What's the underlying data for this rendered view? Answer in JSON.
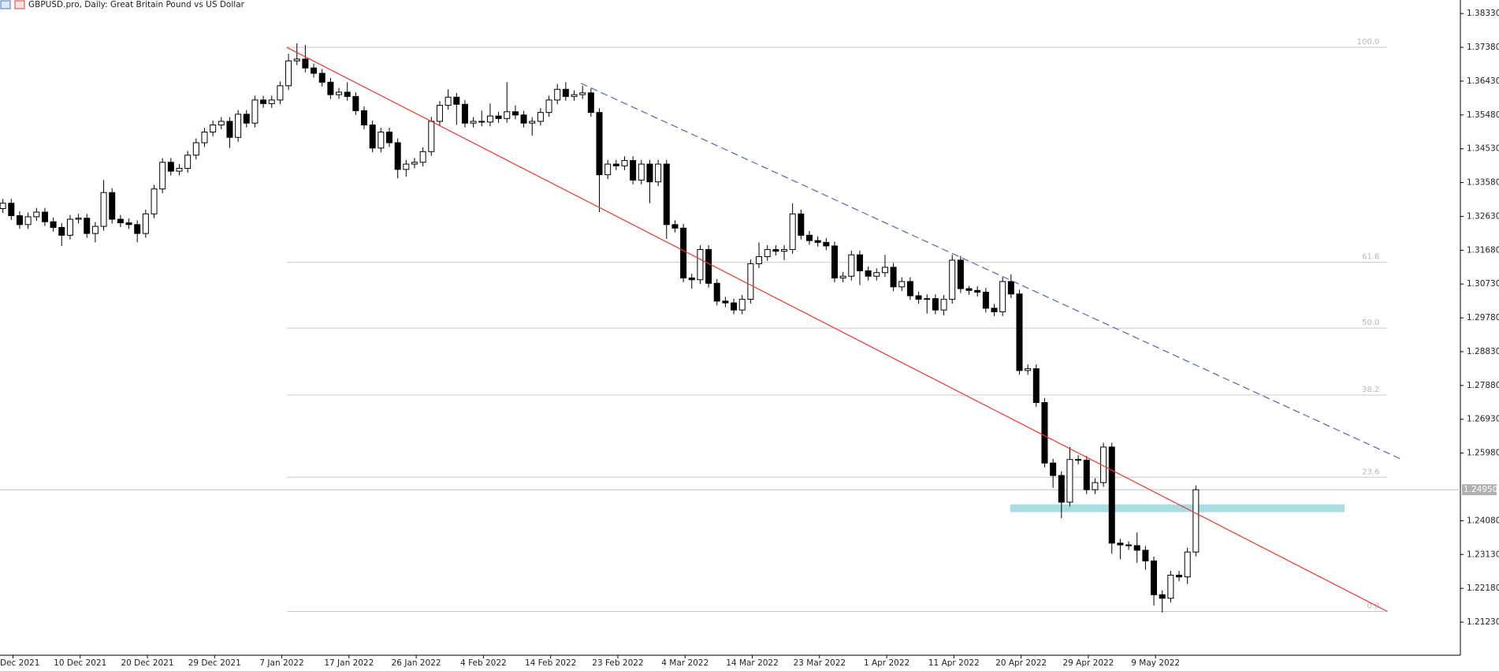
{
  "chart_data": {
    "type": "candlestick",
    "title": "GBPUSD.pro, Daily:  Great Britain Pound vs US Dollar",
    "ylim": [
      1.203,
      1.3871
    ],
    "yticks": [
      {
        "value": 1.3833,
        "label": "1.38330"
      },
      {
        "value": 1.3738,
        "label": "1.37380"
      },
      {
        "value": 1.3643,
        "label": "1.36430"
      },
      {
        "value": 1.3548,
        "label": "1.35480"
      },
      {
        "value": 1.3453,
        "label": "1.34530"
      },
      {
        "value": 1.3358,
        "label": "1.33580"
      },
      {
        "value": 1.3263,
        "label": "1.32630"
      },
      {
        "value": 1.3168,
        "label": "1.31680"
      },
      {
        "value": 1.3073,
        "label": "1.30730"
      },
      {
        "value": 1.2978,
        "label": "1.29780"
      },
      {
        "value": 1.2883,
        "label": "1.28830"
      },
      {
        "value": 1.2788,
        "label": "1.27880"
      },
      {
        "value": 1.2693,
        "label": "1.26930"
      },
      {
        "value": 1.2598,
        "label": "1.25980"
      },
      {
        "value": 1.2408,
        "label": "1.24080"
      },
      {
        "value": 1.2313,
        "label": "1.23130"
      },
      {
        "value": 1.2218,
        "label": "1.22180"
      },
      {
        "value": 1.2123,
        "label": "1.21230"
      }
    ],
    "x_labels": [
      "Dec 2021",
      "10 Dec 2021",
      "20 Dec 2021",
      "29 Dec 2021",
      "7 Jan 2022",
      "17 Jan 2022",
      "26 Jan 2022",
      "4 Feb 2022",
      "14 Feb 2022",
      "23 Feb 2022",
      "4 Mar 2022",
      "14 Mar 2022",
      "23 Mar 2022",
      "1 Apr 2022",
      "11 Apr 2022",
      "20 Apr 2022",
      "29 Apr 2022",
      "9 May 2022"
    ],
    "up_color": "#ffffff",
    "down_color": "#000000",
    "open": [
      1.3285,
      1.33,
      1.3265,
      1.324,
      1.3262,
      1.3275,
      1.3248,
      1.3232,
      1.321,
      1.3255,
      1.3258,
      1.3215,
      1.3235,
      1.333,
      1.3255,
      1.3245,
      1.324,
      1.3215,
      1.327,
      1.334,
      1.3415,
      1.339,
      1.3398,
      1.3435,
      1.347,
      1.35,
      1.352,
      1.353,
      1.3485,
      1.355,
      1.3525,
      1.359,
      1.358,
      1.359,
      1.363,
      1.37,
      1.3705,
      1.368,
      1.3665,
      1.364,
      1.3605,
      1.3612,
      1.36,
      1.356,
      1.352,
      1.3455,
      1.35,
      1.347,
      1.3395,
      1.341,
      1.3415,
      1.3445,
      1.353,
      1.3575,
      1.3598,
      1.3578,
      1.3525,
      1.353,
      1.3528,
      1.3545,
      1.3538,
      1.3557,
      1.3548,
      1.3525,
      1.353,
      1.3555,
      1.359,
      1.362,
      1.36,
      1.3605,
      1.361,
      1.3555,
      1.338,
      1.341,
      1.3405,
      1.342,
      1.3365,
      1.341,
      1.336,
      1.341,
      1.324,
      1.323,
      1.309,
      1.3085,
      1.317,
      1.3075,
      1.3025,
      1.302,
      1.3,
      1.303,
      1.313,
      1.315,
      1.317,
      1.3165,
      1.317,
      1.327,
      1.321,
      1.3195,
      1.319,
      1.318,
      1.309,
      1.3095,
      1.3155,
      1.311,
      1.3095,
      1.3105,
      1.312,
      1.3065,
      1.308,
      1.304,
      1.303,
      1.3032,
      1.3,
      1.303,
      1.314,
      1.306,
      1.3055,
      1.305,
      1.3005,
      1.2995,
      1.308,
      1.3045,
      1.283,
      1.2835,
      1.274,
      1.257,
      1.2535,
      1.246,
      1.258,
      1.2578,
      1.2495,
      1.2515,
      1.2615,
      1.2345,
      1.234,
      1.2338,
      1.2325,
      1.2295,
      1.22,
      1.219,
      1.2255,
      1.225,
      1.232
    ],
    "high": [
      1.3312,
      1.3312,
      1.3277,
      1.3274,
      1.3287,
      1.3287,
      1.326,
      1.3244,
      1.3267,
      1.327,
      1.327,
      1.3247,
      1.3365,
      1.3342,
      1.3267,
      1.3257,
      1.3252,
      1.3282,
      1.3352,
      1.3427,
      1.3427,
      1.341,
      1.3447,
      1.3482,
      1.3512,
      1.3532,
      1.3542,
      1.3542,
      1.3562,
      1.3562,
      1.3602,
      1.3602,
      1.3602,
      1.3642,
      1.372,
      1.3749,
      1.3745,
      1.3692,
      1.3677,
      1.3652,
      1.3624,
      1.364,
      1.3612,
      1.3572,
      1.3532,
      1.3512,
      1.3512,
      1.3482,
      1.3422,
      1.3427,
      1.3457,
      1.3542,
      1.3587,
      1.362,
      1.361,
      1.359,
      1.3542,
      1.356,
      1.358,
      1.3557,
      1.364,
      1.3575,
      1.356,
      1.3542,
      1.3567,
      1.3602,
      1.3635,
      1.364,
      1.3617,
      1.363,
      1.3622,
      1.3567,
      1.3422,
      1.3422,
      1.3432,
      1.3432,
      1.3422,
      1.3422,
      1.3422,
      1.3422,
      1.3252,
      1.3242,
      1.3102,
      1.3182,
      1.3182,
      1.3087,
      1.3037,
      1.3032,
      1.3042,
      1.3142,
      1.319,
      1.3182,
      1.3182,
      1.3182,
      1.33,
      1.3282,
      1.3222,
      1.3207,
      1.3202,
      1.3192,
      1.3107,
      1.3167,
      1.3167,
      1.3122,
      1.3117,
      1.3155,
      1.3132,
      1.3092,
      1.3092,
      1.3052,
      1.3044,
      1.3044,
      1.3042,
      1.3155,
      1.3152,
      1.3067,
      1.3067,
      1.3062,
      1.3017,
      1.3092,
      1.31,
      1.3057,
      1.2847,
      1.2847,
      1.2752,
      1.2582,
      1.2547,
      1.2615,
      1.2592,
      1.259,
      1.2527,
      1.2627,
      1.2627,
      1.2357,
      1.235,
      1.2375,
      1.2337,
      1.2307,
      1.2212,
      1.2267,
      1.2267,
      1.2332,
      1.2507
    ],
    "low": [
      1.3273,
      1.3253,
      1.3228,
      1.3228,
      1.325,
      1.3236,
      1.322,
      1.318,
      1.3198,
      1.3243,
      1.3203,
      1.319,
      1.3223,
      1.3243,
      1.3233,
      1.3228,
      1.319,
      1.3203,
      1.3258,
      1.3328,
      1.3378,
      1.3378,
      1.3386,
      1.3423,
      1.3458,
      1.3488,
      1.3508,
      1.3455,
      1.3473,
      1.3513,
      1.3513,
      1.3568,
      1.3568,
      1.3578,
      1.3618,
      1.3688,
      1.3668,
      1.3653,
      1.3628,
      1.3593,
      1.3593,
      1.3588,
      1.3548,
      1.3508,
      1.3443,
      1.3443,
      1.3458,
      1.337,
      1.3375,
      1.3398,
      1.3403,
      1.3433,
      1.3518,
      1.3563,
      1.352,
      1.3513,
      1.3513,
      1.3516,
      1.3516,
      1.3526,
      1.3526,
      1.3536,
      1.3513,
      1.349,
      1.3518,
      1.3543,
      1.3578,
      1.3588,
      1.3588,
      1.3593,
      1.3543,
      1.3275,
      1.3368,
      1.3393,
      1.3393,
      1.3353,
      1.3353,
      1.33,
      1.3348,
      1.32,
      1.3218,
      1.3078,
      1.306,
      1.3073,
      1.3063,
      1.3013,
      1.3008,
      1.2988,
      1.2988,
      1.3018,
      1.3118,
      1.3138,
      1.3153,
      1.314,
      1.3158,
      1.3198,
      1.3183,
      1.3178,
      1.3168,
      1.3078,
      1.3078,
      1.3083,
      1.307,
      1.3083,
      1.3083,
      1.3093,
      1.3053,
      1.3053,
      1.3028,
      1.3018,
      1.299,
      1.2988,
      1.2985,
      1.3018,
      1.3048,
      1.3043,
      1.3038,
      1.2993,
      1.2983,
      1.2983,
      1.3033,
      1.2818,
      1.2818,
      1.2728,
      1.2558,
      1.25,
      1.2415,
      1.2448,
      1.2566,
      1.2483,
      1.2483,
      1.2503,
      1.2315,
      1.23,
      1.2326,
      1.229,
      1.227,
      1.217,
      1.215,
      1.2178,
      1.2238,
      1.223,
      1.2308
    ],
    "close": [
      1.33,
      1.3265,
      1.324,
      1.3262,
      1.3275,
      1.3248,
      1.3232,
      1.321,
      1.3255,
      1.3258,
      1.3215,
      1.3235,
      1.333,
      1.3255,
      1.3245,
      1.324,
      1.3215,
      1.327,
      1.334,
      1.3415,
      1.339,
      1.3398,
      1.3435,
      1.347,
      1.35,
      1.352,
      1.353,
      1.3485,
      1.355,
      1.3525,
      1.359,
      1.358,
      1.359,
      1.363,
      1.37,
      1.3705,
      1.368,
      1.3665,
      1.364,
      1.3605,
      1.3612,
      1.36,
      1.356,
      1.352,
      1.3455,
      1.35,
      1.347,
      1.3395,
      1.341,
      1.3415,
      1.3445,
      1.353,
      1.3575,
      1.3598,
      1.3578,
      1.3525,
      1.353,
      1.3528,
      1.3545,
      1.3538,
      1.3557,
      1.3548,
      1.3525,
      1.353,
      1.3555,
      1.359,
      1.362,
      1.36,
      1.3605,
      1.361,
      1.3555,
      1.338,
      1.341,
      1.3405,
      1.342,
      1.3365,
      1.341,
      1.336,
      1.341,
      1.324,
      1.323,
      1.309,
      1.3085,
      1.317,
      1.3075,
      1.3025,
      1.302,
      1.3,
      1.303,
      1.313,
      1.315,
      1.317,
      1.3165,
      1.317,
      1.327,
      1.321,
      1.3195,
      1.319,
      1.318,
      1.309,
      1.3095,
      1.3155,
      1.311,
      1.3095,
      1.3105,
      1.312,
      1.3065,
      1.308,
      1.304,
      1.303,
      1.3032,
      1.3,
      1.303,
      1.314,
      1.306,
      1.3055,
      1.305,
      1.3005,
      1.2995,
      1.308,
      1.3045,
      1.283,
      1.2835,
      1.274,
      1.257,
      1.2535,
      1.246,
      1.258,
      1.2578,
      1.2495,
      1.2515,
      1.2615,
      1.2345,
      1.234,
      1.2338,
      1.2325,
      1.2295,
      1.22,
      1.219,
      1.2255,
      1.225,
      1.232,
      1.2495
    ],
    "current_price": 1.2495,
    "current_price_label": "1.24950",
    "fibo": {
      "color": "#c8c8c8",
      "bars": [
        33.8,
        164.8
      ],
      "levels": [
        {
          "label": "100.0",
          "price": 1.3738
        },
        {
          "label": "61.8",
          "price": 1.3134
        },
        {
          "label": "50.0",
          "price": 1.2949
        },
        {
          "label": "38.2",
          "price": 1.2761
        },
        {
          "label": "23.6",
          "price": 1.253
        },
        {
          "label": "0.0",
          "price": 1.2153
        }
      ]
    },
    "trendlines": [
      {
        "color": "#e8392f",
        "style": "solid",
        "bars": [
          33.8,
          164.8
        ],
        "prices": [
          1.3738,
          1.2153
        ]
      },
      {
        "color": "#5a64a8",
        "style": "dashed",
        "bars": [
          68.8,
          166.7
        ],
        "prices": [
          1.3637,
          1.2578
        ]
      }
    ],
    "zone": {
      "color": "#a9dce3",
      "bars": [
        119.9,
        159.7
      ],
      "prices": [
        1.2454,
        1.2432
      ]
    }
  }
}
